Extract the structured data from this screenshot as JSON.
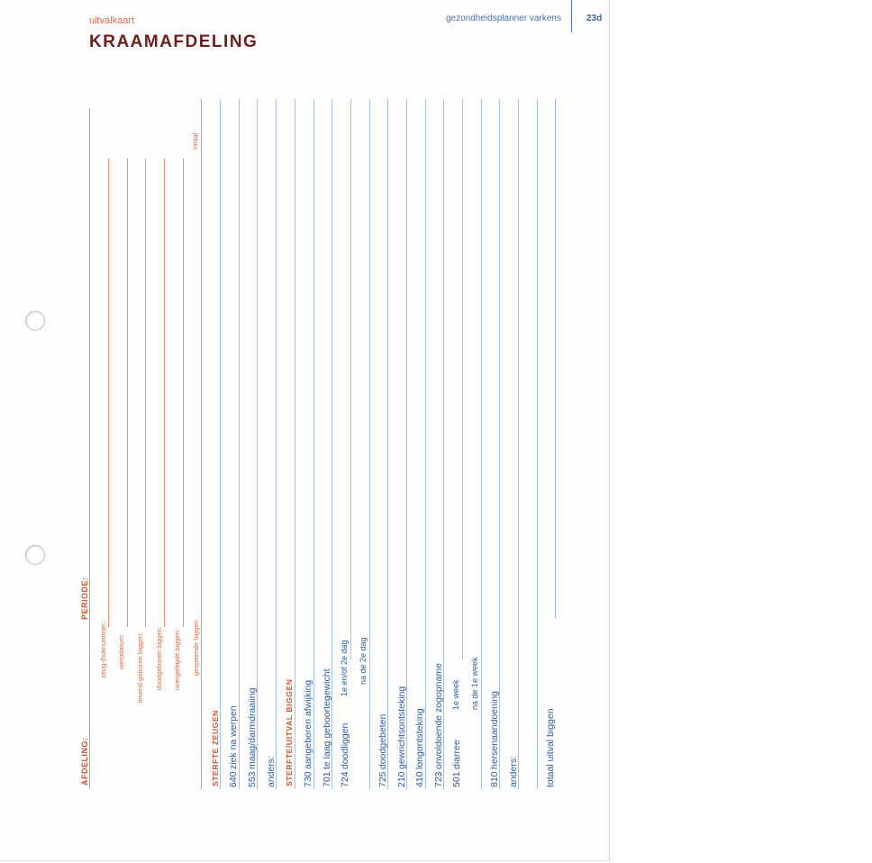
{
  "header": {
    "card_type": "uitvalkaart",
    "title": "KRAAMAFDELING",
    "book": "gezondheidsplanner varkens",
    "page": "23d"
  },
  "form": {
    "afdeling_label": "AFDELING:",
    "periode_label": "PERIODE:",
    "fields": [
      {
        "label": "zeug-/hoknummer:"
      },
      {
        "label": "werpdatum:"
      },
      {
        "label": "levend geboren biggen:"
      },
      {
        "label": "doodgeboren biggen:"
      },
      {
        "label": "overgelegde biggen:"
      },
      {
        "label": "gespeende biggen:"
      }
    ],
    "total_label": "totaal"
  },
  "sections": {
    "sows": "STERFTE ZEUGEN",
    "piglets": "STERFTE/UITVAL BIGGEN"
  },
  "rows": {
    "r640": {
      "code": "640",
      "label": "ziek na werpen"
    },
    "r553": {
      "code": "553",
      "label": "maag/darmdraaiing"
    },
    "other1": {
      "label": "anders:"
    },
    "r730": {
      "code": "730",
      "label": "aangeboren afwijking"
    },
    "r701": {
      "code": "701",
      "label": "te laag geboortegewicht"
    },
    "r724": {
      "code": "724",
      "label": "doodliggen",
      "sub1": "1e en/of 2e dag",
      "sub2": "na de 2e dag"
    },
    "r725": {
      "code": "725",
      "label": "doodgebeten"
    },
    "r210": {
      "code": "210",
      "label": "gewrichtsontsteking"
    },
    "r410": {
      "code": "410",
      "label": "longontsteking"
    },
    "r723": {
      "code": "723",
      "label": "onvoldoende zogopname"
    },
    "r501": {
      "code": "501",
      "label": "diarree",
      "sub1": "1e week",
      "sub2": "na de 1e week"
    },
    "r810": {
      "code": "810",
      "label": "hersenaandoening"
    },
    "other2": {
      "label": "anders:"
    },
    "total": {
      "label": "totaal uitval biggen"
    }
  }
}
